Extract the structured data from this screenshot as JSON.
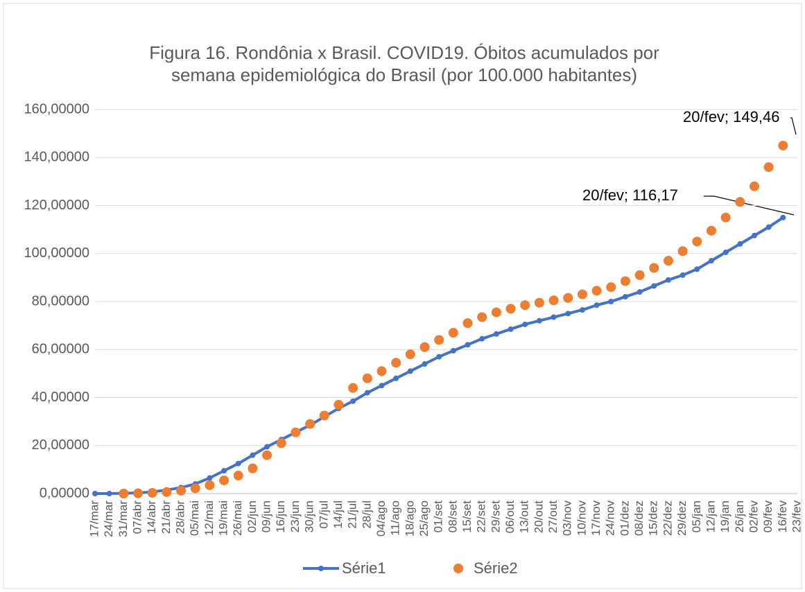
{
  "chart_data": {
    "type": "line",
    "title": "Figura 16. Rondônia x Brasil. COVID19. Óbitos acumulados por",
    "subtitle": "semana epidemiológica do Brasil (por 100.000 habitantes)",
    "categories": [
      "17/mar",
      "24/mar",
      "31/mar",
      "07/abr",
      "14/abr",
      "21/abr",
      "28/abr",
      "05/mai",
      "12/mai",
      "19/mai",
      "26/mai",
      "02/jun",
      "09/jun",
      "16/jun",
      "23/jun",
      "30/jun",
      "07/jul",
      "14/jul",
      "21/jul",
      "28/jul",
      "04/ago",
      "11/ago",
      "18/ago",
      "25/ago",
      "01/set",
      "08/set",
      "15/set",
      "22/set",
      "29/set",
      "06/out",
      "13/out",
      "20/out",
      "27/out",
      "03/nov",
      "10/nov",
      "17/nov",
      "24/nov",
      "01/dez",
      "08/dez",
      "15/dez",
      "22/dez",
      "29/dez",
      "05/jan",
      "12/jan",
      "19/jan",
      "26/jan",
      "02/fev",
      "09/fev",
      "16/fev",
      "23/fev"
    ],
    "series": [
      {
        "name": "Série1",
        "color": "#4472c4",
        "show_line": true,
        "values": [
          0,
          0,
          0.1,
          0.3,
          0.7,
          1.5,
          2.5,
          4,
          6.5,
          9.5,
          12.5,
          16,
          19.5,
          22.5,
          25.5,
          28.5,
          32,
          35.5,
          38.5,
          42,
          45,
          48,
          51,
          54,
          57,
          59.5,
          62,
          64.5,
          66.5,
          68.5,
          70.5,
          72,
          73.5,
          75,
          76.5,
          78.5,
          80,
          82,
          84,
          86.5,
          89,
          91,
          93.5,
          97,
          100.5,
          104,
          107.5,
          111,
          115,
          null
        ]
      },
      {
        "name": "Série2",
        "color": "#ed7d31",
        "show_line": false,
        "values": [
          null,
          null,
          0,
          0.1,
          0.3,
          0.6,
          1.2,
          2.2,
          3.5,
          5.5,
          7.5,
          10.5,
          16,
          21,
          25.5,
          29,
          32.5,
          37,
          44,
          48,
          51,
          54.5,
          58,
          61,
          64,
          67,
          71,
          73.5,
          75.5,
          77,
          78.5,
          79.5,
          80.5,
          81.5,
          83,
          84.5,
          86,
          88.5,
          91,
          94,
          97,
          101,
          105,
          109.5,
          115,
          121.5,
          128,
          136,
          145,
          null
        ]
      }
    ],
    "annotations": [
      "20/fev; 149,46",
      "20/fev; 116,17"
    ],
    "ylim": [
      0,
      160
    ],
    "yticks": [
      {
        "value": 0,
        "label": "0,00000"
      },
      {
        "value": 20,
        "label": "20,00000"
      },
      {
        "value": 40,
        "label": "40,00000"
      },
      {
        "value": 60,
        "label": "60,00000"
      },
      {
        "value": 80,
        "label": "80,00000"
      },
      {
        "value": 100,
        "label": "100,00000"
      },
      {
        "value": 120,
        "label": "120,00000"
      },
      {
        "value": 140,
        "label": "140,00000"
      },
      {
        "value": 160,
        "label": "160,00000"
      }
    ],
    "grid": true,
    "legend": "bottom"
  }
}
